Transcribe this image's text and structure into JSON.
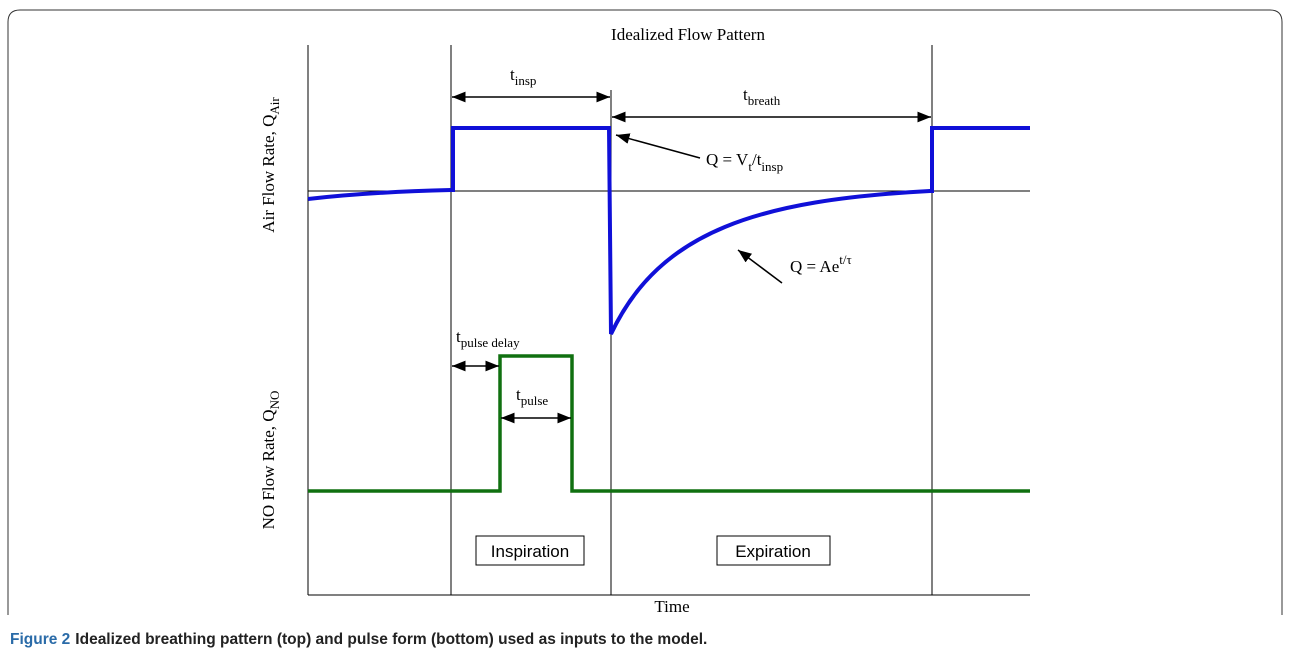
{
  "title": "Idealized Flow Pattern",
  "y_labels": {
    "air": {
      "main": "Air Flow Rate, Q",
      "sub": "Air"
    },
    "no": {
      "main": "NO Flow Rate, Q",
      "sub": "NO"
    }
  },
  "x_label": "Time",
  "annotations": {
    "t_insp": {
      "main": "t",
      "sub": "insp"
    },
    "t_breath": {
      "main": "t",
      "sub": "breath"
    },
    "q_insp": {
      "a": "Q = V",
      "a_sub": "t",
      "b": "/t",
      "b_sub": "insp"
    },
    "q_exp": {
      "a": "Q = Ae",
      "sup": "t/τ"
    },
    "t_pulse_delay": {
      "main": "t",
      "sub": "pulse delay"
    },
    "t_pulse": {
      "main": "t",
      "sub": "pulse"
    }
  },
  "boxes": {
    "inspiration": "Inspiration",
    "expiration": "Expiration"
  },
  "caption": {
    "label": "Figure 2",
    "text": "Idealized breathing pattern (top) and pulse form (bottom) used as inputs to the model."
  }
}
